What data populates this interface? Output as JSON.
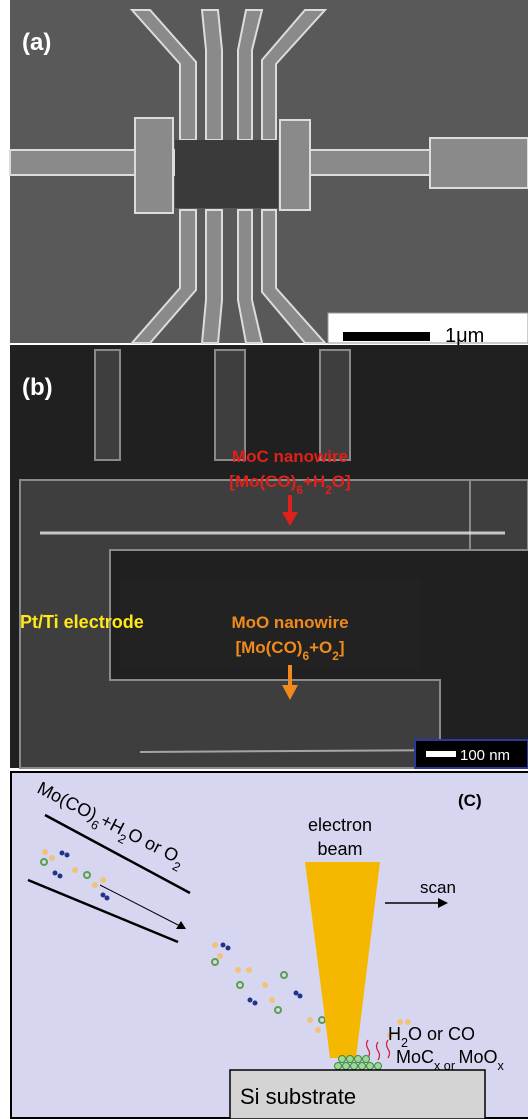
{
  "panel_a": {
    "label": "(a)",
    "scale_bar": "1μm"
  },
  "panel_b": {
    "label": "(b)",
    "moc_title": "MoC nanowire",
    "moc_formula": [
      "[Mo(CO)",
      "6",
      "+H",
      "2",
      "O]"
    ],
    "electrode": "Pt/Ti electrode",
    "moo_title": "MoO nanowire",
    "moo_formula": [
      "[Mo(CO)",
      "6",
      "+O",
      "2",
      "]"
    ],
    "scale_bar": "100 nm"
  },
  "panel_c": {
    "label": "(C)",
    "precursor": [
      "Mo(CO)",
      "6",
      "+H",
      "2",
      "O or O",
      "2"
    ],
    "beam": [
      "electron",
      "beam"
    ],
    "scan": "scan",
    "byproduct": [
      "H",
      "2",
      "O or CO"
    ],
    "deposit": [
      "MoC",
      "x",
      " or ",
      "MoO",
      "x"
    ],
    "substrate": "Si substrate"
  }
}
